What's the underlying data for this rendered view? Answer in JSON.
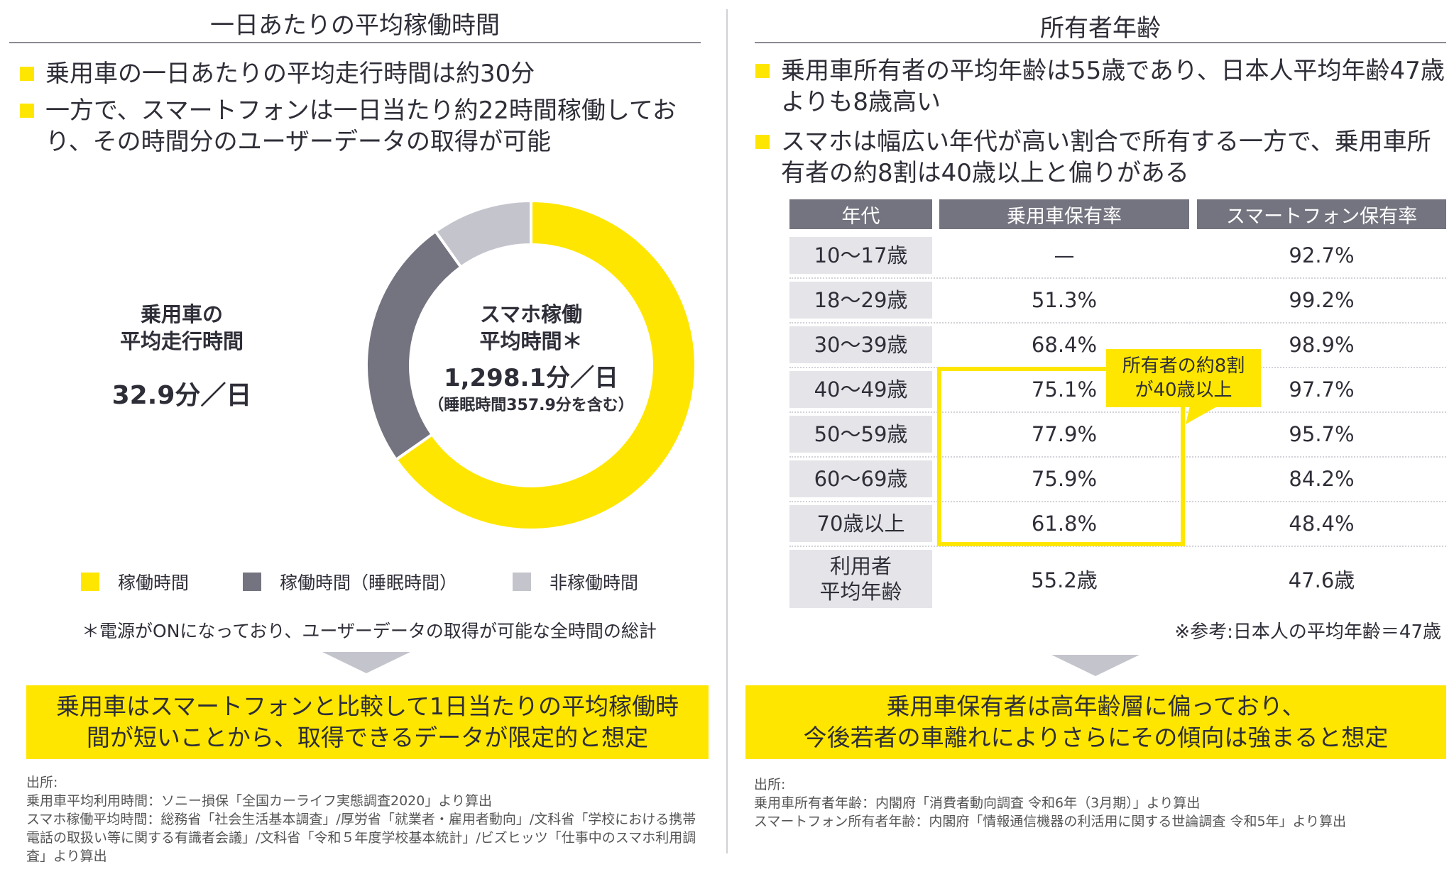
{
  "left": {
    "title": "一日あたりの平均稼働時間",
    "bullets": [
      "乗用車の一日あたりの平均走行時間は約30分",
      "一方で、スマートフォンは一日当たり約22時間稼働しており、その時間分のユーザーデータの取得が可能"
    ],
    "car_label_line1": "乗用車の",
    "car_label_line2": "平均走行時間",
    "car_value": "32.9分／日",
    "donut_center_line1": "スマホ稼働",
    "donut_center_line2": "平均時間＊",
    "donut_center_value": "1,298.1分／日",
    "donut_center_note": "（睡眠時間357.9分を含む）",
    "footnote": "＊電源がONになっており、ユーザーデータの取得が可能な全時間の総計",
    "conclusion": "乗用車はスマートフォンと比較して1日当たりの平均稼働時間が短いことから、取得できるデータが限定的と想定",
    "sources": [
      "出所:",
      "乗用車平均利用時間：ソニー損保「全国カーライフ実態調査2020」より算出",
      "スマホ稼働平均時間：総務省「社会生活基本調査」/厚労省「就業者・雇用者動向」/文科省「学校における携帯電話の取扱い等に関する有識者会議」/文科省「令和５年度学校基本統計」/ビズヒッツ「仕事中のスマホ利用調査」より算出"
    ]
  },
  "chart_data": {
    "type": "pie",
    "donut": true,
    "start": "top, clockwise",
    "legend_position": "bottom",
    "categories": [
      "稼働時間",
      "稼働時間（睡眠時間）",
      "非稼働時間"
    ],
    "values": [
      940.2,
      357.9,
      141.9
    ],
    "unit": "分",
    "colors": [
      "#FFE600",
      "#747480",
      "#C4C4CD"
    ]
  },
  "right": {
    "title": "所有者年齢",
    "bullets": [
      "乗用車所有者の平均年齢は55歳であり、日本人平均年齢47歳よりも8歳高い",
      "スマホは幅広い年代が高い割合で所有する一方で、乗用車所有者の約8割は40歳以上と偏りがある"
    ],
    "table": {
      "headers": [
        "年代",
        "乗用車保有率",
        "スマートフォン保有率"
      ],
      "rows": [
        [
          "10〜17歳",
          "—",
          "92.7%"
        ],
        [
          "18〜29歳",
          "51.3%",
          "99.2%"
        ],
        [
          "30〜39歳",
          "68.4%",
          "98.9%"
        ],
        [
          "40〜49歳",
          "75.1%",
          "97.7%"
        ],
        [
          "50〜59歳",
          "77.9%",
          "95.7%"
        ],
        [
          "60〜69歳",
          "75.9%",
          "84.2%"
        ],
        [
          "70歳以上",
          "61.8%",
          "48.4%"
        ]
      ],
      "avg_row": {
        "label_line1": "利用者",
        "label_line2": "平均年齢",
        "car": "55.2歳",
        "phone": "47.6歳"
      }
    },
    "callout_line1": "所有者の約8割",
    "callout_line2": "が40歳以上",
    "note": "※参考:日本人の平均年齢＝47歳",
    "conclusion_line1": "乗用車保有者は高年齢層に偏っており、",
    "conclusion_line2": "今後若者の車離れによりさらにその傾向は強まると想定",
    "sources": [
      "出所:",
      "乗用車所有者年齢：内閣府「消費者動向調査 令和6年（3月期）」より算出",
      "スマートフォン所有者年齢：内閣府「情報通信機器の利活用に関する世論調査 令和5年」より算出"
    ]
  },
  "colors": {
    "accent": "#FFE600",
    "dark_gray": "#747480",
    "light_gray": "#C4C4CD",
    "label_bg": "#E4E4E9"
  }
}
